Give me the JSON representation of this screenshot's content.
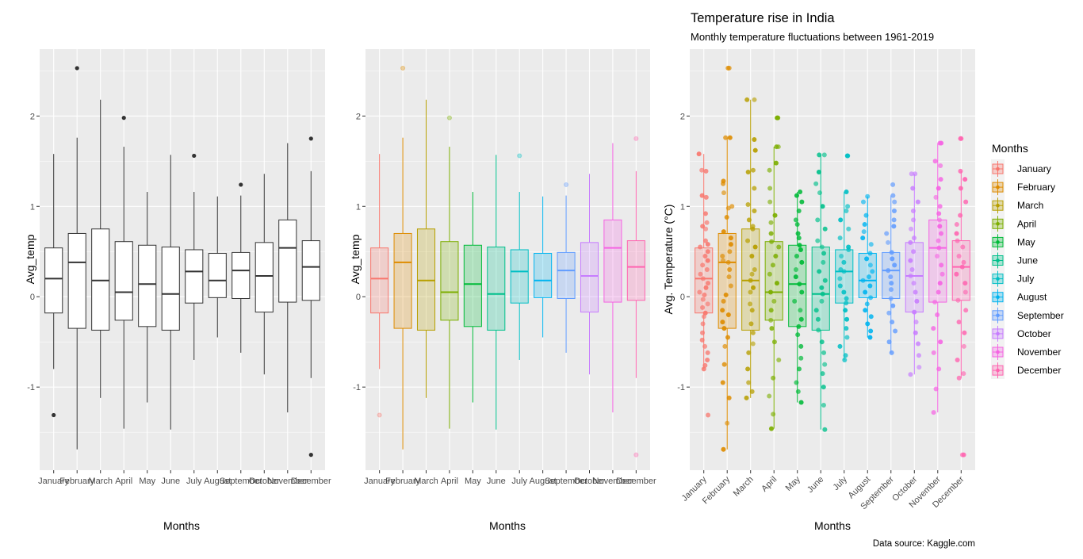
{
  "chart_data": [
    {
      "type": "boxplot",
      "panel": "plain",
      "title": "",
      "xlabel": "Months",
      "ylabel": "Avg_temp",
      "ylim": [
        -1.92,
        2.74
      ],
      "yticks": [
        -1,
        0,
        1,
        2
      ],
      "grid": true,
      "categories": [
        "January",
        "February",
        "March",
        "April",
        "May",
        "June",
        "July",
        "August",
        "September",
        "October",
        "November",
        "December"
      ],
      "boxes": [
        {
          "month": "January",
          "lower": -0.8,
          "q1": -0.18,
          "median": 0.2,
          "q3": 0.54,
          "upper": 1.58,
          "outliers": [
            -1.31
          ]
        },
        {
          "month": "February",
          "lower": -1.69,
          "q1": -0.35,
          "median": 0.38,
          "q3": 0.7,
          "upper": 1.76,
          "outliers": [
            2.53
          ]
        },
        {
          "month": "March",
          "lower": -1.12,
          "q1": -0.37,
          "median": 0.18,
          "q3": 0.75,
          "upper": 2.18,
          "outliers": []
        },
        {
          "month": "April",
          "lower": -1.46,
          "q1": -0.26,
          "median": 0.05,
          "q3": 0.61,
          "upper": 1.66,
          "outliers": [
            1.98
          ]
        },
        {
          "month": "May",
          "lower": -1.17,
          "q1": -0.33,
          "median": 0.14,
          "q3": 0.57,
          "upper": 1.16,
          "outliers": []
        },
        {
          "month": "June",
          "lower": -1.47,
          "q1": -0.37,
          "median": 0.03,
          "q3": 0.55,
          "upper": 1.57,
          "outliers": []
        },
        {
          "month": "July",
          "lower": -0.7,
          "q1": -0.07,
          "median": 0.28,
          "q3": 0.52,
          "upper": 1.16,
          "outliers": [
            1.56
          ]
        },
        {
          "month": "August",
          "lower": -0.45,
          "q1": -0.01,
          "median": 0.18,
          "q3": 0.48,
          "upper": 1.11,
          "outliers": []
        },
        {
          "month": "September",
          "lower": -0.62,
          "q1": -0.02,
          "median": 0.29,
          "q3": 0.49,
          "upper": 1.12,
          "outliers": [
            1.24
          ]
        },
        {
          "month": "October",
          "lower": -0.86,
          "q1": -0.17,
          "median": 0.23,
          "q3": 0.6,
          "upper": 1.36,
          "outliers": []
        },
        {
          "month": "November",
          "lower": -1.28,
          "q1": -0.06,
          "median": 0.54,
          "q3": 0.85,
          "upper": 1.7,
          "outliers": []
        },
        {
          "month": "December",
          "lower": -0.9,
          "q1": -0.04,
          "median": 0.33,
          "q3": 0.62,
          "upper": 1.39,
          "outliers": [
            1.75,
            -1.75
          ]
        }
      ]
    },
    {
      "type": "boxplot",
      "panel": "colored",
      "title": "",
      "xlabel": "Months",
      "ylabel": "Avg_temp",
      "ylim": [
        -1.92,
        2.74
      ],
      "yticks": [
        -1,
        0,
        1,
        2
      ],
      "grid": true,
      "categories": [
        "January",
        "February",
        "March",
        "April",
        "May",
        "June",
        "July",
        "August",
        "September",
        "October",
        "November",
        "December"
      ],
      "colors": [
        "#F8766D",
        "#DE8C00",
        "#B79F00",
        "#7CAE00",
        "#00BA38",
        "#00C08B",
        "#00BFC4",
        "#00B4F0",
        "#619CFF",
        "#C77CFF",
        "#F564E3",
        "#FF64B0"
      ],
      "same_boxes_as": "plain"
    },
    {
      "type": "boxplot+jitter",
      "panel": "jitter",
      "title": "Temperature rise in India",
      "subtitle": "Monthly temperature fluctuations between 1961-2019",
      "caption": "Data source: Kaggle.com",
      "xlabel": "Months",
      "ylabel": "Avg. Temperature (°C)",
      "ylim": [
        -1.92,
        2.74
      ],
      "yticks": [
        -1,
        0,
        1,
        2
      ],
      "grid": true,
      "legend": {
        "title": "Months",
        "position": "right",
        "entries": [
          "January",
          "February",
          "March",
          "April",
          "May",
          "June",
          "July",
          "August",
          "September",
          "October",
          "November",
          "December"
        ]
      },
      "points": {
        "January": [
          1.58,
          1.4,
          1.39,
          1.12,
          1.1,
          0.92,
          0.82,
          0.78,
          0.75,
          0.62,
          0.58,
          0.55,
          0.5,
          0.45,
          0.4,
          0.35,
          0.3,
          0.25,
          0.2,
          0.15,
          0.1,
          0.05,
          0.02,
          -0.03,
          -0.08,
          -0.12,
          -0.18,
          -0.22,
          -0.3,
          -0.4,
          -0.48,
          -0.55,
          -0.62,
          -0.7,
          -0.76,
          -0.8,
          -1.31
        ],
        "February": [
          2.53,
          2.53,
          1.76,
          1.76,
          1.28,
          1.25,
          1.15,
          1.0,
          0.98,
          0.88,
          0.72,
          0.65,
          0.58,
          0.5,
          0.45,
          0.4,
          0.38,
          0.3,
          0.22,
          0.12,
          0.02,
          -0.05,
          -0.15,
          -0.2,
          -0.28,
          -0.35,
          -0.45,
          -0.55,
          -0.75,
          -0.95,
          -1.12,
          -1.4,
          -1.69
        ],
        "March": [
          2.18,
          2.18,
          1.74,
          1.62,
          1.4,
          1.38,
          1.2,
          1.02,
          0.95,
          0.85,
          0.78,
          0.75,
          0.62,
          0.55,
          0.45,
          0.3,
          0.25,
          0.18,
          0.1,
          0.05,
          -0.08,
          -0.15,
          -0.3,
          -0.4,
          -0.52,
          -0.62,
          -0.8,
          -0.95,
          -1.05,
          -1.12
        ],
        "April": [
          1.98,
          1.98,
          1.66,
          1.66,
          1.48,
          1.4,
          1.2,
          1.05,
          0.9,
          0.82,
          0.7,
          0.61,
          0.55,
          0.45,
          0.35,
          0.25,
          0.15,
          0.05,
          -0.05,
          -0.15,
          -0.26,
          -0.35,
          -0.5,
          -0.7,
          -0.9,
          -1.1,
          -1.3,
          -1.46
        ],
        "May": [
          1.16,
          1.12,
          1.05,
          0.95,
          0.85,
          0.8,
          0.7,
          0.65,
          0.57,
          0.52,
          0.45,
          0.38,
          0.3,
          0.22,
          0.14,
          0.05,
          -0.05,
          -0.15,
          -0.25,
          -0.33,
          -0.42,
          -0.55,
          -0.68,
          -0.8,
          -0.95,
          -1.05,
          -1.17
        ],
        "June": [
          1.57,
          1.57,
          1.38,
          1.25,
          1.15,
          1.0,
          0.85,
          0.75,
          0.62,
          0.55,
          0.48,
          0.38,
          0.28,
          0.18,
          0.1,
          0.03,
          -0.05,
          -0.15,
          -0.25,
          -0.37,
          -0.5,
          -0.62,
          -0.75,
          -0.85,
          -1.0,
          -1.2,
          -1.47
        ],
        "July": [
          1.56,
          1.56,
          1.16,
          1.0,
          0.95,
          0.85,
          0.75,
          0.65,
          0.55,
          0.52,
          0.45,
          0.38,
          0.3,
          0.28,
          0.2,
          0.12,
          0.05,
          -0.02,
          -0.07,
          -0.15,
          -0.25,
          -0.35,
          -0.45,
          -0.55,
          -0.65,
          -0.7
        ],
        "August": [
          1.11,
          1.05,
          0.9,
          0.8,
          0.72,
          0.65,
          0.58,
          0.48,
          0.42,
          0.35,
          0.28,
          0.22,
          0.18,
          0.12,
          0.05,
          -0.01,
          -0.08,
          -0.15,
          -0.22,
          -0.3,
          -0.38,
          -0.45
        ],
        "September": [
          1.24,
          1.12,
          1.05,
          0.95,
          0.85,
          0.78,
          0.7,
          0.6,
          0.49,
          0.42,
          0.35,
          0.29,
          0.22,
          0.15,
          0.08,
          -0.02,
          -0.1,
          -0.18,
          -0.28,
          -0.38,
          -0.5,
          -0.62
        ],
        "October": [
          1.36,
          1.36,
          1.2,
          1.05,
          0.95,
          0.85,
          0.75,
          0.65,
          0.6,
          0.5,
          0.4,
          0.3,
          0.23,
          0.15,
          0.05,
          -0.05,
          -0.17,
          -0.28,
          -0.4,
          -0.52,
          -0.65,
          -0.78,
          -0.86
        ],
        "November": [
          1.7,
          1.7,
          1.5,
          1.45,
          1.3,
          1.2,
          1.1,
          1.0,
          0.92,
          0.85,
          0.78,
          0.7,
          0.62,
          0.54,
          0.45,
          0.35,
          0.25,
          0.15,
          0.05,
          -0.06,
          -0.2,
          -0.35,
          -0.5,
          -0.62,
          -0.8,
          -1.02,
          -1.28
        ],
        "December": [
          1.75,
          1.75,
          1.39,
          1.3,
          1.2,
          1.05,
          0.9,
          0.8,
          0.7,
          0.62,
          0.55,
          0.45,
          0.38,
          0.33,
          0.25,
          0.15,
          0.05,
          -0.04,
          -0.15,
          -0.28,
          -0.4,
          -0.55,
          -0.7,
          -0.85,
          -0.9,
          -1.75,
          -1.75
        ]
      }
    }
  ],
  "labels": {
    "panel1": {
      "ylabel": "Avg_temp",
      "xlabel": "Months"
    },
    "panel2": {
      "ylabel": "Avg_temp",
      "xlabel": "Months"
    },
    "panel3": {
      "title": "Temperature rise in India",
      "subtitle": "Monthly temperature fluctuations between 1961-2019",
      "ylabel": "Avg. Temperature (°C)",
      "xlabel": "Months",
      "caption": "Data source: Kaggle.com",
      "legend_title": "Months"
    },
    "yticks": [
      "-1",
      "0",
      "1",
      "2"
    ]
  }
}
